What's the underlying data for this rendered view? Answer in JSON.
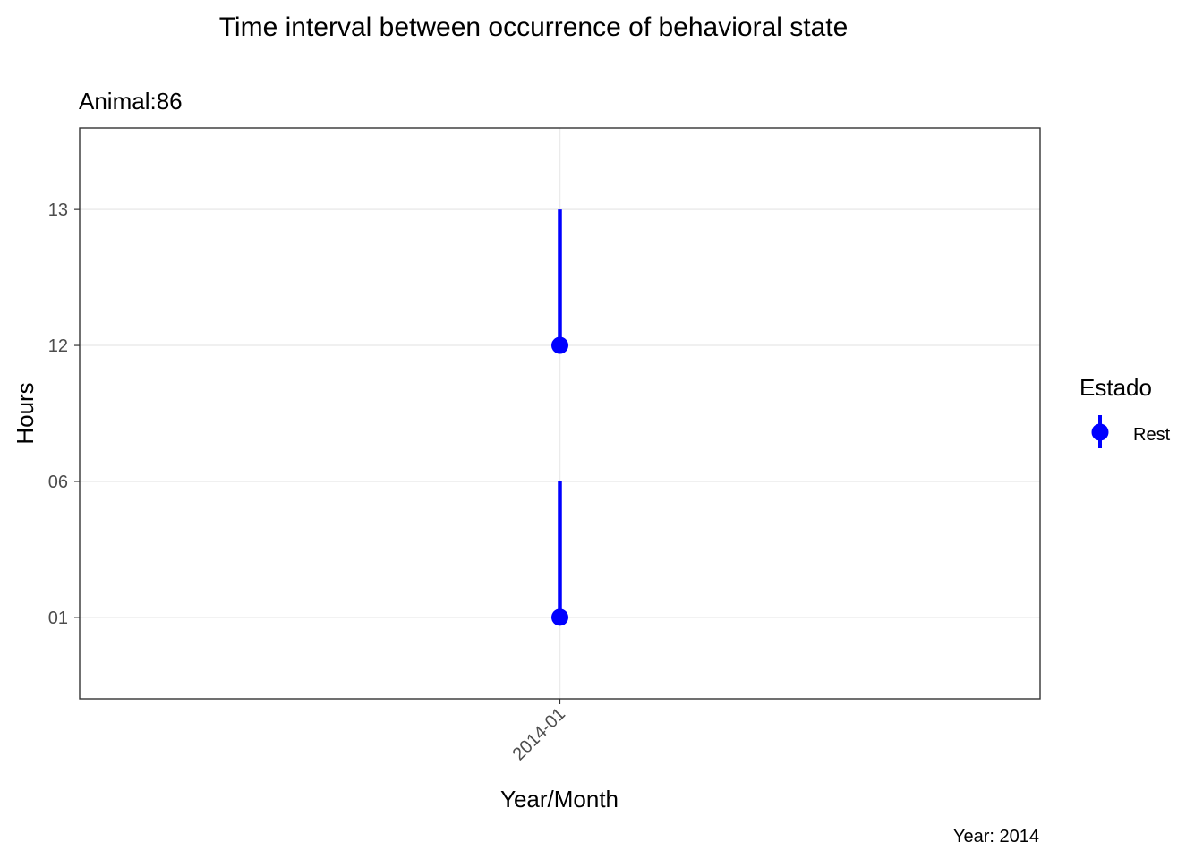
{
  "chart_data": {
    "type": "scatter",
    "title": "Time interval between occurrence of behavioral state",
    "subtitle": "Animal:86",
    "xlabel": "Year/Month",
    "ylabel": "Hours",
    "caption": "Year: 2014",
    "categories": [
      "2014-01"
    ],
    "y_ticks": [
      {
        "label": "01",
        "value": 1
      },
      {
        "label": "06",
        "value": 6
      },
      {
        "label": "12",
        "value": 12
      },
      {
        "label": "13",
        "value": 13
      }
    ],
    "y_axis_categorical_order": [
      "01",
      "06",
      "12",
      "13"
    ],
    "grid": true,
    "legend": {
      "title": "Estado",
      "position": "right",
      "entries": [
        "Rest"
      ]
    },
    "series": [
      {
        "name": "Rest",
        "color": "#0000ff",
        "points": [
          {
            "x": "2014-01",
            "y": "01",
            "y_end": "06"
          },
          {
            "x": "2014-01",
            "y": "12",
            "y_end": "13"
          }
        ]
      }
    ]
  }
}
